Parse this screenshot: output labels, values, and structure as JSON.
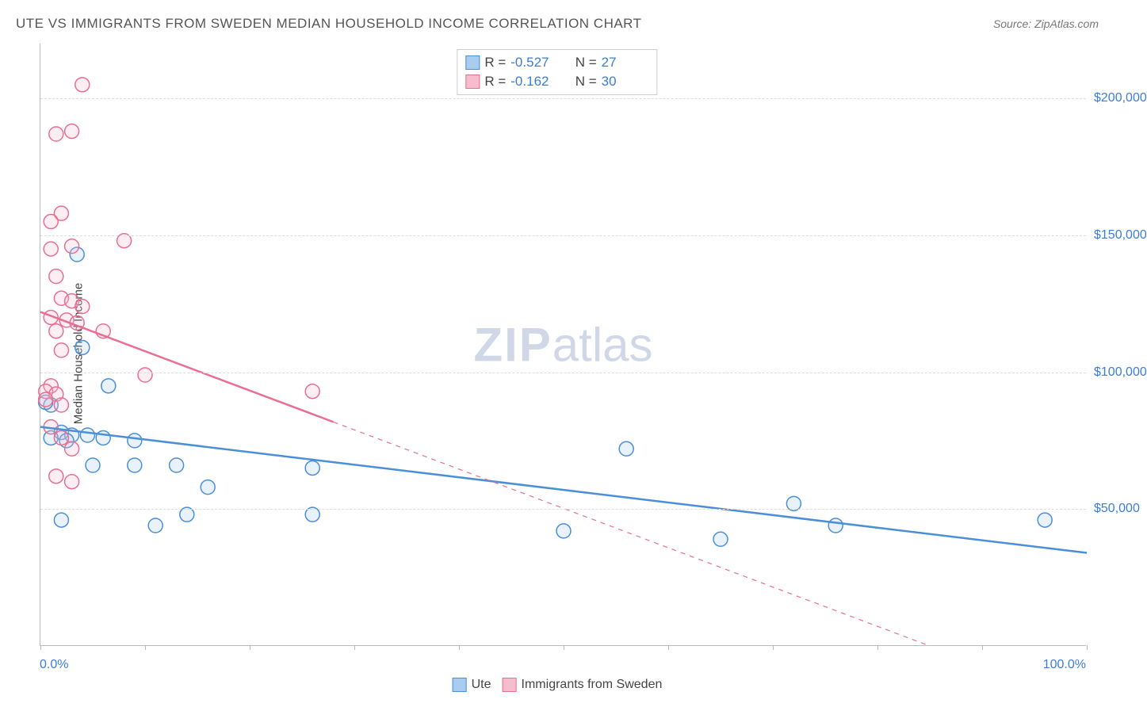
{
  "title": "UTE VS IMMIGRANTS FROM SWEDEN MEDIAN HOUSEHOLD INCOME CORRELATION CHART",
  "source": "Source: ZipAtlas.com",
  "watermark_zip": "ZIP",
  "watermark_atlas": "atlas",
  "y_axis_title": "Median Household Income",
  "x_min_label": "0.0%",
  "x_max_label": "100.0%",
  "chart": {
    "type": "scatter",
    "xlim": [
      0,
      100
    ],
    "ylim": [
      0,
      220000
    ],
    "y_gridlines": [
      50000,
      100000,
      150000,
      200000
    ],
    "y_tick_labels": [
      "$50,000",
      "$100,000",
      "$150,000",
      "$200,000"
    ],
    "x_ticks": [
      0,
      10,
      20,
      30,
      40,
      50,
      60,
      70,
      80,
      90,
      100
    ],
    "background_color": "#ffffff",
    "grid_color": "#dddddd",
    "marker_radius": 9,
    "marker_stroke_width": 1.5,
    "marker_fill_opacity": 0.25,
    "trend_line_width": 2.5,
    "series": [
      {
        "name": "Ute",
        "color_stroke": "#4a8fd8",
        "color_fill": "#a8cdf0",
        "R": "-0.527",
        "N": "27",
        "trend": {
          "x1": 0,
          "y1": 80000,
          "x2": 100,
          "y2": 34000,
          "dash_after_x": null
        },
        "points": [
          {
            "x": 3.5,
            "y": 143000
          },
          {
            "x": 4,
            "y": 109000
          },
          {
            "x": 6.5,
            "y": 95000
          },
          {
            "x": 1,
            "y": 88000
          },
          {
            "x": 0.5,
            "y": 89000
          },
          {
            "x": 2,
            "y": 78000
          },
          {
            "x": 3,
            "y": 77000
          },
          {
            "x": 4.5,
            "y": 77000
          },
          {
            "x": 6,
            "y": 76000
          },
          {
            "x": 1,
            "y": 76000
          },
          {
            "x": 2.5,
            "y": 75000
          },
          {
            "x": 5,
            "y": 66000
          },
          {
            "x": 9,
            "y": 66000
          },
          {
            "x": 13,
            "y": 66000
          },
          {
            "x": 9,
            "y": 75000
          },
          {
            "x": 16,
            "y": 58000
          },
          {
            "x": 14,
            "y": 48000
          },
          {
            "x": 26,
            "y": 65000
          },
          {
            "x": 26,
            "y": 48000
          },
          {
            "x": 2,
            "y": 46000
          },
          {
            "x": 11,
            "y": 44000
          },
          {
            "x": 50,
            "y": 42000
          },
          {
            "x": 56,
            "y": 72000
          },
          {
            "x": 65,
            "y": 39000
          },
          {
            "x": 72,
            "y": 52000
          },
          {
            "x": 76,
            "y": 44000
          },
          {
            "x": 96,
            "y": 46000
          }
        ]
      },
      {
        "name": "Immigrants from Sweden",
        "color_stroke": "#e86f91",
        "color_fill": "#f6bdce",
        "R": "-0.162",
        "N": "30",
        "trend": {
          "x1": 0,
          "y1": 122000,
          "x2": 85,
          "y2": 0,
          "dash_after_x": 28
        },
        "points": [
          {
            "x": 4,
            "y": 205000
          },
          {
            "x": 3,
            "y": 188000
          },
          {
            "x": 1.5,
            "y": 187000
          },
          {
            "x": 2,
            "y": 158000
          },
          {
            "x": 1,
            "y": 155000
          },
          {
            "x": 1,
            "y": 145000
          },
          {
            "x": 3,
            "y": 146000
          },
          {
            "x": 8,
            "y": 148000
          },
          {
            "x": 1.5,
            "y": 135000
          },
          {
            "x": 2,
            "y": 127000
          },
          {
            "x": 3,
            "y": 126000
          },
          {
            "x": 4,
            "y": 124000
          },
          {
            "x": 1,
            "y": 120000
          },
          {
            "x": 2.5,
            "y": 119000
          },
          {
            "x": 3.5,
            "y": 118000
          },
          {
            "x": 1.5,
            "y": 115000
          },
          {
            "x": 6,
            "y": 115000
          },
          {
            "x": 2,
            "y": 108000
          },
          {
            "x": 10,
            "y": 99000
          },
          {
            "x": 1,
            "y": 95000
          },
          {
            "x": 0.5,
            "y": 93000
          },
          {
            "x": 1.5,
            "y": 92000
          },
          {
            "x": 0.5,
            "y": 90000
          },
          {
            "x": 2,
            "y": 88000
          },
          {
            "x": 26,
            "y": 93000
          },
          {
            "x": 1,
            "y": 80000
          },
          {
            "x": 2,
            "y": 76000
          },
          {
            "x": 3,
            "y": 72000
          },
          {
            "x": 1.5,
            "y": 62000
          },
          {
            "x": 3,
            "y": 60000
          }
        ]
      }
    ]
  },
  "legend_top_labels": {
    "R": "R =",
    "N": "N ="
  },
  "legend_bottom": [
    {
      "label": "Ute",
      "series": 0
    },
    {
      "label": "Immigrants from Sweden",
      "series": 1
    }
  ]
}
